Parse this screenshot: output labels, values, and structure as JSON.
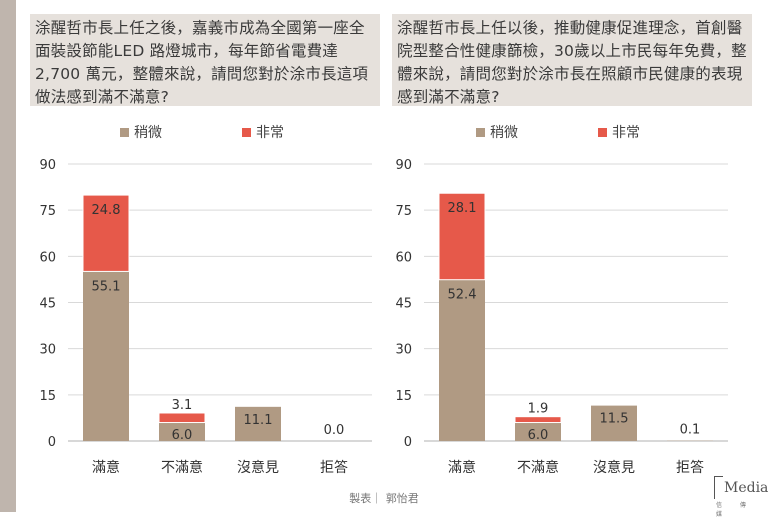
{
  "colors": {
    "slight": "#b09a83",
    "very": "#e6594a",
    "grid": "#d9d9d9",
    "axis": "#b0b0b0"
  },
  "legend": {
    "slight": "稍微",
    "very": "非常"
  },
  "panels": [
    {
      "question": "涂醒哲市長上任之後，嘉義市成為全國第一座全面裝設節能LED 路燈城市，每年節省電費達2,700 萬元，整體來說，請問您對於涂市長這項做法感到滿不滿意?"
    },
    {
      "question": "涂醒哲市長上任以後，推動健康促進理念，首創醫院型整合性健康篩檢，30歲以上市民每年免費，整體來說，請問您對於涂市長在照顧市民健康的表現感到滿不滿意?"
    }
  ],
  "credit": "製表｜ 郭怡君",
  "logo": {
    "text": "Media",
    "sub": "信 傳 媒"
  },
  "chart_data": [
    {
      "type": "bar",
      "stacked": true,
      "categories": [
        "滿意",
        "不滿意",
        "沒意見",
        "拒答"
      ],
      "series": [
        {
          "name": "稍微",
          "values": [
            55.1,
            6.0,
            11.1,
            0.0
          ]
        },
        {
          "name": "非常",
          "values": [
            24.8,
            3.1,
            null,
            null
          ]
        }
      ],
      "labels": [
        {
          "slight": "55.1",
          "very": "24.8"
        },
        {
          "slight": "6.0",
          "very": "3.1"
        },
        {
          "slight": "11.1",
          "very": null
        },
        {
          "slight": "0.0",
          "very": null
        }
      ],
      "yticks": [
        "0",
        "15",
        "30",
        "45",
        "60",
        "75",
        "90"
      ],
      "ylim": [
        0,
        90
      ],
      "legend_position": "top",
      "grid": true
    },
    {
      "type": "bar",
      "stacked": true,
      "categories": [
        "滿意",
        "不滿意",
        "沒意見",
        "拒答"
      ],
      "series": [
        {
          "name": "稍微",
          "values": [
            52.4,
            6.0,
            11.5,
            0.1
          ]
        },
        {
          "name": "非常",
          "values": [
            28.1,
            1.9,
            null,
            null
          ]
        }
      ],
      "labels": [
        {
          "slight": "52.4",
          "very": "28.1"
        },
        {
          "slight": "6.0",
          "very": "1.9"
        },
        {
          "slight": "11.5",
          "very": null
        },
        {
          "slight": "0.1",
          "very": null
        }
      ],
      "yticks": [
        "0",
        "15",
        "30",
        "45",
        "60",
        "75",
        "90"
      ],
      "ylim": [
        0,
        90
      ],
      "legend_position": "top",
      "grid": true
    }
  ]
}
